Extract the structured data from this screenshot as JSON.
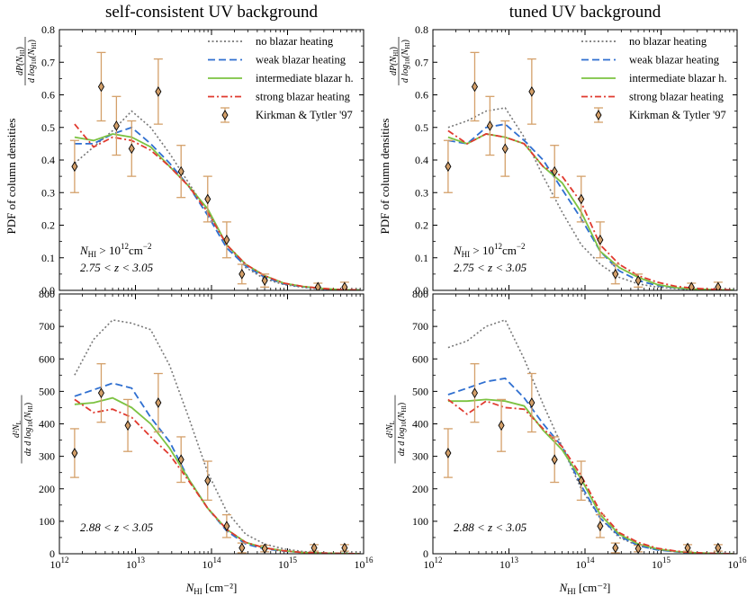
{
  "chart_data": [
    {
      "type": "line",
      "title": "self-consistent UV background",
      "xlabel_main": "N",
      "xlabel_sub": "HI",
      "xlabel_unit": "[cm⁻²]",
      "ylabel_main": "PDF of column densities",
      "ylabel_frac_num": "dP(N",
      "ylabel_frac_num_end": "HI",
      "ylabel_frac_den": "d log",
      "ylabel_frac_den_mid": "10",
      "ylabel_frac_den_end": "(N",
      "ylabel_frac_den_sub": "HI",
      "xscale": "log",
      "xlim_exp": [
        12,
        16
      ],
      "ylim": [
        0,
        0.8
      ],
      "yticks": [
        "0.0",
        "0.1",
        "0.2",
        "0.3",
        "0.4",
        "0.5",
        "0.6",
        "0.7",
        "0.8"
      ],
      "annotation_line1": "N",
      "annotation_line1_sub": "HI",
      "annotation_line1_rest": " > 10",
      "annotation_line1_exp": "12",
      "annotation_line1_unit": "cm",
      "annotation_line1_unit_exp": "−2",
      "annotation_line2": "2.75 < z < 3.05",
      "legend": {
        "position": "top-right",
        "entries": [
          "no blazar heating",
          "weak blazar heating",
          "intermediate blazar h.",
          "strong blazar heating",
          "Kirkman & Tytler '97"
        ]
      },
      "x_log": [
        12.2,
        12.45,
        12.7,
        12.95,
        13.2,
        13.45,
        13.7,
        13.95,
        14.2,
        14.45,
        14.7,
        14.95,
        15.2,
        15.45,
        15.7,
        15.95
      ],
      "series": [
        {
          "name": "no blazar heating",
          "color": "#777777",
          "values": [
            0.39,
            0.44,
            0.49,
            0.55,
            0.5,
            0.42,
            0.33,
            0.24,
            0.14,
            0.07,
            0.035,
            0.018,
            0.009,
            0.004,
            0.002,
            0.001
          ]
        },
        {
          "name": "weak blazar heating",
          "color": "#2f6fd0",
          "values": [
            0.45,
            0.45,
            0.48,
            0.5,
            0.45,
            0.39,
            0.32,
            0.23,
            0.13,
            0.075,
            0.04,
            0.02,
            0.011,
            0.005,
            0.002,
            0.001
          ]
        },
        {
          "name": "intermediate blazar h.",
          "color": "#7cc241",
          "values": [
            0.47,
            0.46,
            0.48,
            0.47,
            0.44,
            0.38,
            0.32,
            0.25,
            0.14,
            0.08,
            0.045,
            0.022,
            0.012,
            0.006,
            0.002,
            0.001
          ]
        },
        {
          "name": "strong blazar heating",
          "color": "#e03a2f",
          "values": [
            0.51,
            0.44,
            0.47,
            0.46,
            0.43,
            0.38,
            0.32,
            0.24,
            0.14,
            0.08,
            0.045,
            0.022,
            0.012,
            0.006,
            0.002,
            0.001
          ]
        }
      ],
      "observations": {
        "name": "Kirkman & Tytler '97",
        "color": "#d4a06a",
        "x_log": [
          12.2,
          12.55,
          12.75,
          12.95,
          13.3,
          13.6,
          13.95,
          14.2,
          14.4,
          14.7,
          15.4,
          15.75
        ],
        "y": [
          0.38,
          0.625,
          0.505,
          0.435,
          0.61,
          0.365,
          0.28,
          0.155,
          0.05,
          0.03,
          0.01,
          0.01
        ],
        "err": [
          0.08,
          0.105,
          0.09,
          0.085,
          0.1,
          0.08,
          0.07,
          0.055,
          0.03,
          0.02,
          0.012,
          0.015
        ]
      }
    },
    {
      "type": "line",
      "title": "tuned UV background",
      "xlabel_main": "N",
      "xlabel_sub": "HI",
      "xlabel_unit": "[cm⁻²]",
      "ylabel_main": "PDF of column densities",
      "ylabel_frac_num": "dP(N",
      "ylabel_frac_num_end": "HI",
      "ylabel_frac_den": "d log",
      "ylabel_frac_den_mid": "10",
      "ylabel_frac_den_end": "(N",
      "ylabel_frac_den_sub": "HI",
      "xscale": "log",
      "xlim_exp": [
        12,
        16
      ],
      "ylim": [
        0,
        0.8
      ],
      "yticks": [
        "0.0",
        "0.1",
        "0.2",
        "0.3",
        "0.4",
        "0.5",
        "0.6",
        "0.7",
        "0.8"
      ],
      "annotation_line1": "N",
      "annotation_line1_sub": "HI",
      "annotation_line1_rest": " > 10",
      "annotation_line1_exp": "12",
      "annotation_line1_unit": "cm",
      "annotation_line1_unit_exp": "−2",
      "annotation_line2": "2.75 < z < 3.05",
      "legend": {
        "position": "top-right",
        "entries": [
          "no blazar heating",
          "weak blazar heating",
          "intermediate blazar h.",
          "strong blazar heating",
          "Kirkman & Tytler '97"
        ]
      },
      "x_log": [
        12.2,
        12.45,
        12.7,
        12.95,
        13.2,
        13.45,
        13.7,
        13.95,
        14.2,
        14.45,
        14.7,
        14.95,
        15.2,
        15.45,
        15.7,
        15.95
      ],
      "series": [
        {
          "name": "no blazar heating",
          "color": "#777777",
          "values": [
            0.5,
            0.52,
            0.55,
            0.56,
            0.47,
            0.35,
            0.24,
            0.14,
            0.08,
            0.04,
            0.02,
            0.01,
            0.005,
            0.002,
            0.001,
            0.0005
          ]
        },
        {
          "name": "weak blazar heating",
          "color": "#2f6fd0",
          "values": [
            0.46,
            0.45,
            0.5,
            0.51,
            0.46,
            0.4,
            0.31,
            0.22,
            0.12,
            0.06,
            0.03,
            0.015,
            0.007,
            0.003,
            0.001,
            0.0005
          ]
        },
        {
          "name": "intermediate blazar h.",
          "color": "#7cc241",
          "values": [
            0.47,
            0.45,
            0.48,
            0.47,
            0.45,
            0.38,
            0.33,
            0.24,
            0.12,
            0.07,
            0.04,
            0.018,
            0.008,
            0.004,
            0.002,
            0.001
          ]
        },
        {
          "name": "strong blazar heating",
          "color": "#e03a2f",
          "values": [
            0.49,
            0.45,
            0.48,
            0.47,
            0.45,
            0.38,
            0.35,
            0.27,
            0.14,
            0.08,
            0.045,
            0.025,
            0.012,
            0.006,
            0.003,
            0.001
          ]
        }
      ],
      "observations": {
        "name": "Kirkman & Tytler '97",
        "color": "#d4a06a",
        "x_log": [
          12.2,
          12.55,
          12.75,
          12.95,
          13.3,
          13.6,
          13.95,
          14.2,
          14.4,
          14.7,
          15.4,
          15.75
        ],
        "y": [
          0.38,
          0.625,
          0.505,
          0.435,
          0.61,
          0.365,
          0.28,
          0.155,
          0.05,
          0.03,
          0.01,
          0.01
        ],
        "err": [
          0.08,
          0.105,
          0.09,
          0.085,
          0.1,
          0.08,
          0.07,
          0.055,
          0.03,
          0.02,
          0.012,
          0.015
        ]
      }
    },
    {
      "type": "line",
      "xlabel_main": "N",
      "xlabel_sub": "HI",
      "xlabel_unit": "[cm⁻²]",
      "ylabel_num": "d²N",
      "ylabel_num_sub": "L",
      "ylabel_den": "dz d log",
      "ylabel_den_mid": "10",
      "ylabel_den_end": "(N",
      "ylabel_den_sub": "HI",
      "xscale": "log",
      "xlim_exp": [
        12,
        16
      ],
      "xticks": [
        "12",
        "13",
        "14",
        "15",
        "16"
      ],
      "ylim": [
        0,
        800
      ],
      "yticks": [
        "0",
        "100",
        "200",
        "300",
        "400",
        "500",
        "600",
        "700",
        "800"
      ],
      "annotation_line2": "2.88 < z < 3.05",
      "x_log": [
        12.2,
        12.45,
        12.7,
        12.95,
        13.2,
        13.45,
        13.7,
        13.95,
        14.2,
        14.45,
        14.7,
        14.95,
        15.2,
        15.45,
        15.7,
        15.95
      ],
      "series": [
        {
          "name": "no blazar heating",
          "color": "#777777",
          "values": [
            550,
            660,
            720,
            710,
            690,
            580,
            420,
            250,
            130,
            60,
            30,
            15,
            7,
            3,
            1,
            0
          ]
        },
        {
          "name": "weak blazar heating",
          "color": "#2f6fd0",
          "values": [
            485,
            505,
            525,
            510,
            420,
            345,
            230,
            140,
            70,
            30,
            15,
            8,
            4,
            2,
            1,
            0
          ]
        },
        {
          "name": "intermediate blazar h.",
          "color": "#7cc241",
          "values": [
            460,
            465,
            480,
            450,
            400,
            325,
            230,
            140,
            75,
            35,
            18,
            9,
            4,
            2,
            1,
            0
          ]
        },
        {
          "name": "strong blazar heating",
          "color": "#e03a2f",
          "values": [
            475,
            435,
            445,
            420,
            360,
            305,
            225,
            140,
            75,
            35,
            18,
            9,
            4,
            2,
            1,
            0
          ]
        }
      ],
      "observations": {
        "name": "Kirkman & Tytler '97",
        "color": "#d4a06a",
        "x_log": [
          12.2,
          12.55,
          12.9,
          13.3,
          13.6,
          13.95,
          14.2,
          14.4,
          14.7,
          15.35,
          15.75
        ],
        "y": [
          310,
          495,
          395,
          465,
          290,
          225,
          85,
          18,
          16,
          18,
          18
        ],
        "err": [
          75,
          90,
          80,
          90,
          70,
          60,
          35,
          15,
          10,
          10,
          10
        ]
      }
    },
    {
      "type": "line",
      "xlabel_main": "N",
      "xlabel_sub": "HI",
      "xlabel_unit": "[cm⁻²]",
      "ylabel_num": "d²N",
      "ylabel_num_sub": "L",
      "ylabel_den": "dz d log",
      "ylabel_den_mid": "10",
      "ylabel_den_end": "(N",
      "ylabel_den_sub": "HI",
      "xscale": "log",
      "xlim_exp": [
        12,
        16
      ],
      "xticks": [
        "12",
        "13",
        "14",
        "15",
        "16"
      ],
      "ylim": [
        0,
        800
      ],
      "yticks": [
        "0",
        "100",
        "200",
        "300",
        "400",
        "500",
        "600",
        "700",
        "800"
      ],
      "annotation_line2": "2.88 < z < 3.05",
      "x_log": [
        12.2,
        12.45,
        12.7,
        12.95,
        13.2,
        13.45,
        13.7,
        13.95,
        14.2,
        14.45,
        14.7,
        14.95,
        15.2,
        15.45,
        15.7,
        15.95
      ],
      "series": [
        {
          "name": "no blazar heating",
          "color": "#777777",
          "values": [
            635,
            655,
            700,
            720,
            600,
            460,
            330,
            200,
            110,
            50,
            25,
            12,
            6,
            3,
            1,
            0
          ]
        },
        {
          "name": "weak blazar heating",
          "color": "#2f6fd0",
          "values": [
            490,
            510,
            530,
            540,
            480,
            400,
            330,
            210,
            110,
            55,
            25,
            12,
            6,
            2,
            1,
            0
          ]
        },
        {
          "name": "intermediate blazar h.",
          "color": "#7cc241",
          "values": [
            470,
            470,
            475,
            470,
            455,
            380,
            320,
            230,
            120,
            60,
            30,
            15,
            7,
            3,
            1,
            0
          ]
        },
        {
          "name": "strong blazar heating",
          "color": "#e03a2f",
          "values": [
            475,
            430,
            470,
            450,
            445,
            385,
            330,
            240,
            130,
            65,
            35,
            17,
            8,
            3,
            1,
            0
          ]
        }
      ],
      "observations": {
        "name": "Kirkman & Tytler '97",
        "color": "#d4a06a",
        "x_log": [
          12.2,
          12.55,
          12.9,
          13.3,
          13.6,
          13.95,
          14.2,
          14.4,
          14.7,
          15.35,
          15.75
        ],
        "y": [
          310,
          495,
          395,
          465,
          290,
          225,
          85,
          18,
          16,
          18,
          18
        ],
        "err": [
          75,
          90,
          80,
          90,
          70,
          60,
          35,
          15,
          10,
          10,
          10
        ]
      }
    }
  ]
}
